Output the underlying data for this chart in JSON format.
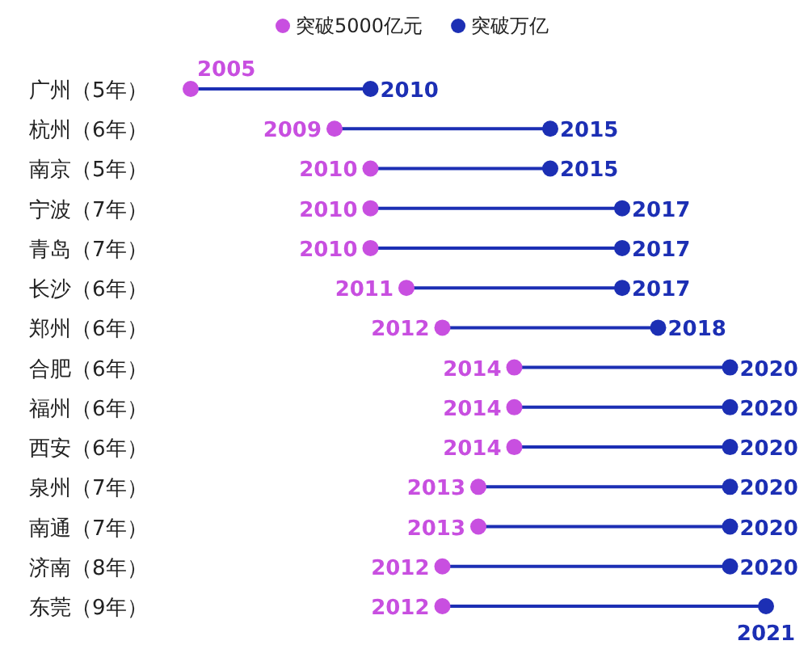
{
  "chart_data": {
    "type": "scatter",
    "orientation": "horizontal",
    "categories": [
      "广州（5年）",
      "杭州（6年）",
      "南京（5年）",
      "宁波（7年）",
      "青岛（7年）",
      "长沙（6年）",
      "郑州（6年）",
      "合肥（6年）",
      "福州（6年）",
      "西安（6年）",
      "泉州（7年）",
      "南通（7年）",
      "济南（8年）",
      "东莞（9年）"
    ],
    "series": [
      {
        "name": "突破5000亿元",
        "color": "#c84fe0",
        "values": [
          2005,
          2009,
          2010,
          2010,
          2010,
          2011,
          2012,
          2014,
          2014,
          2014,
          2013,
          2013,
          2012,
          2012
        ]
      },
      {
        "name": "突破万亿",
        "color": "#1c2fb4",
        "values": [
          2010,
          2015,
          2015,
          2017,
          2017,
          2017,
          2018,
          2020,
          2020,
          2020,
          2020,
          2020,
          2020,
          2021
        ]
      }
    ],
    "data_labels": true,
    "legend": "top",
    "marker": "circle",
    "tick_labels": "y"
  }
}
